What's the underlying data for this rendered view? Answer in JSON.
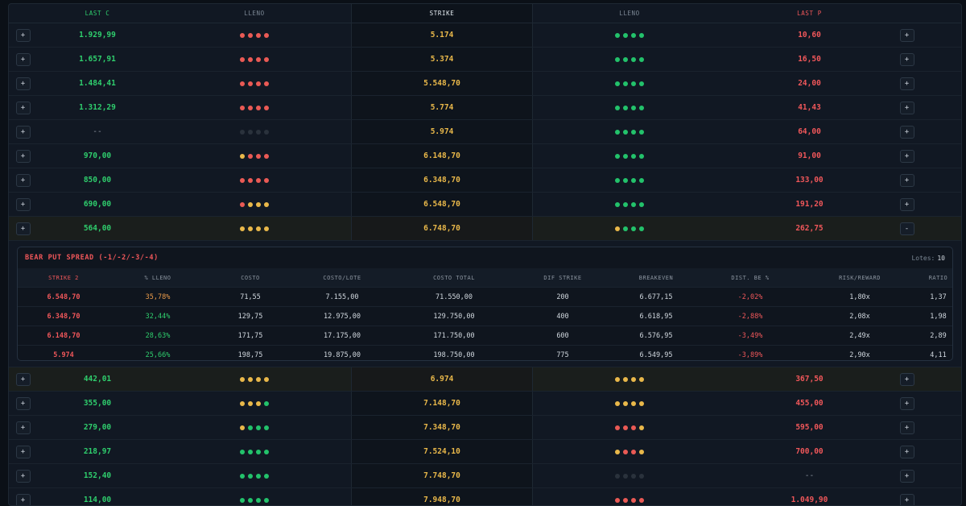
{
  "header": {
    "last_c": "LAST C",
    "lleno_left": "LLENO",
    "strike": "STRIKE",
    "lleno_right": "LLENO",
    "last_p": "LAST P"
  },
  "rows_top": [
    {
      "btn_left": "+",
      "last_c": "1.929,99",
      "lleno_c": [
        "r",
        "r",
        "r",
        "r"
      ],
      "strike": "5.174",
      "lleno_p": [
        "g",
        "g",
        "g",
        "g"
      ],
      "last_p": "10,60",
      "btn_right": "+"
    },
    {
      "btn_left": "+",
      "last_c": "1.657,91",
      "lleno_c": [
        "r",
        "r",
        "r",
        "r"
      ],
      "strike": "5.374",
      "lleno_p": [
        "g",
        "g",
        "g",
        "g"
      ],
      "last_p": "16,50",
      "btn_right": "+"
    },
    {
      "btn_left": "+",
      "last_c": "1.484,41",
      "lleno_c": [
        "r",
        "r",
        "r",
        "r"
      ],
      "strike": "5.548,70",
      "lleno_p": [
        "g",
        "g",
        "g",
        "g"
      ],
      "last_p": "24,00",
      "btn_right": "+"
    },
    {
      "btn_left": "+",
      "last_c": "1.312,29",
      "lleno_c": [
        "r",
        "r",
        "r",
        "r"
      ],
      "strike": "5.774",
      "lleno_p": [
        "g",
        "g",
        "g",
        "g"
      ],
      "last_p": "41,43",
      "btn_right": "+"
    },
    {
      "btn_left": "+",
      "last_c": "--",
      "lleno_c": [
        "k",
        "k",
        "k",
        "k"
      ],
      "strike": "5.974",
      "lleno_p": [
        "g",
        "g",
        "g",
        "g"
      ],
      "last_p": "64,00",
      "btn_right": "+"
    },
    {
      "btn_left": "+",
      "last_c": "970,00",
      "lleno_c": [
        "y",
        "r",
        "r",
        "r"
      ],
      "strike": "6.148,70",
      "lleno_p": [
        "g",
        "g",
        "g",
        "g"
      ],
      "last_p": "91,00",
      "btn_right": "+"
    },
    {
      "btn_left": "+",
      "last_c": "850,00",
      "lleno_c": [
        "r",
        "r",
        "r",
        "r"
      ],
      "strike": "6.348,70",
      "lleno_p": [
        "g",
        "g",
        "g",
        "g"
      ],
      "last_p": "133,00",
      "btn_right": "+"
    },
    {
      "btn_left": "+",
      "last_c": "690,00",
      "lleno_c": [
        "r",
        "y",
        "y",
        "y"
      ],
      "strike": "6.548,70",
      "lleno_p": [
        "g",
        "g",
        "g",
        "g"
      ],
      "last_p": "191,20",
      "btn_right": "+"
    },
    {
      "btn_left": "+",
      "last_c": "564,00",
      "lleno_c": [
        "y",
        "y",
        "y",
        "y"
      ],
      "strike": "6.748,70",
      "lleno_p": [
        "y",
        "g",
        "g",
        "g"
      ],
      "last_p": "262,75",
      "btn_right": "-"
    }
  ],
  "spread": {
    "title": "BEAR PUT SPREAD (-1/-2/-3/-4)",
    "lots_label": "Lotes:",
    "lots_value": "10",
    "columns": [
      "STRIKE 2",
      "% LLENO",
      "COSTO",
      "COSTO/LOTE",
      "COSTO TOTAL",
      "DIF STRIKE",
      "BREAKEVEN",
      "DIST. BE %",
      "RISK/REWARD",
      "RATIO"
    ],
    "rows": [
      {
        "strike2": "6.548,70",
        "lleno_pct": "35,78%",
        "lleno_color": "orange",
        "costo": "71,55",
        "costo_lote": "7.155,00",
        "costo_total": "71.550,00",
        "dif_strike": "200",
        "breakeven": "6.677,15",
        "dist_be": "-2,02%",
        "risk_reward": "1,80x",
        "ratio": "1,37"
      },
      {
        "strike2": "6.348,70",
        "lleno_pct": "32,44%",
        "lleno_color": "green",
        "costo": "129,75",
        "costo_lote": "12.975,00",
        "costo_total": "129.750,00",
        "dif_strike": "400",
        "breakeven": "6.618,95",
        "dist_be": "-2,88%",
        "risk_reward": "2,08x",
        "ratio": "1,98"
      },
      {
        "strike2": "6.148,70",
        "lleno_pct": "28,63%",
        "lleno_color": "green",
        "costo": "171,75",
        "costo_lote": "17.175,00",
        "costo_total": "171.750,00",
        "dif_strike": "600",
        "breakeven": "6.576,95",
        "dist_be": "-3,49%",
        "risk_reward": "2,49x",
        "ratio": "2,89"
      },
      {
        "strike2": "5.974",
        "lleno_pct": "25,66%",
        "lleno_color": "green",
        "costo": "198,75",
        "costo_lote": "19.875,00",
        "costo_total": "198.750,00",
        "dif_strike": "775",
        "breakeven": "6.549,95",
        "dist_be": "-3,89%",
        "risk_reward": "2,90x",
        "ratio": "4,11"
      }
    ]
  },
  "rows_bottom": [
    {
      "btn_left": "+",
      "last_c": "442,01",
      "lleno_c": [
        "y",
        "y",
        "y",
        "y"
      ],
      "strike": "6.974",
      "lleno_p": [
        "y",
        "y",
        "y",
        "y"
      ],
      "last_p": "367,50",
      "btn_right": "+"
    },
    {
      "btn_left": "+",
      "last_c": "355,00",
      "lleno_c": [
        "y",
        "y",
        "y",
        "g"
      ],
      "strike": "7.148,70",
      "lleno_p": [
        "y",
        "y",
        "y",
        "y"
      ],
      "last_p": "455,00",
      "btn_right": "+"
    },
    {
      "btn_left": "+",
      "last_c": "279,00",
      "lleno_c": [
        "y",
        "g",
        "g",
        "g"
      ],
      "strike": "7.348,70",
      "lleno_p": [
        "r",
        "r",
        "r",
        "y"
      ],
      "last_p": "595,00",
      "btn_right": "+"
    },
    {
      "btn_left": "+",
      "last_c": "218,97",
      "lleno_c": [
        "g",
        "g",
        "g",
        "g"
      ],
      "strike": "7.524,10",
      "lleno_p": [
        "y",
        "r",
        "r",
        "y"
      ],
      "last_p": "700,00",
      "btn_right": "+"
    },
    {
      "btn_left": "+",
      "last_c": "152,40",
      "lleno_c": [
        "g",
        "g",
        "g",
        "g"
      ],
      "strike": "7.748,70",
      "lleno_p": [
        "k",
        "k",
        "k",
        "k"
      ],
      "last_p": "--",
      "btn_right": "+"
    },
    {
      "btn_left": "+",
      "last_c": "114,00",
      "lleno_c": [
        "g",
        "g",
        "g",
        "g"
      ],
      "strike": "7.948,70",
      "lleno_p": [
        "r",
        "r",
        "r",
        "r"
      ],
      "last_p": "1.049,90",
      "btn_right": "+"
    }
  ],
  "colors": {
    "green": "#2fce6d",
    "red": "#f0575a",
    "yellow": "#e9b84a",
    "neutral": "#2a323c"
  }
}
